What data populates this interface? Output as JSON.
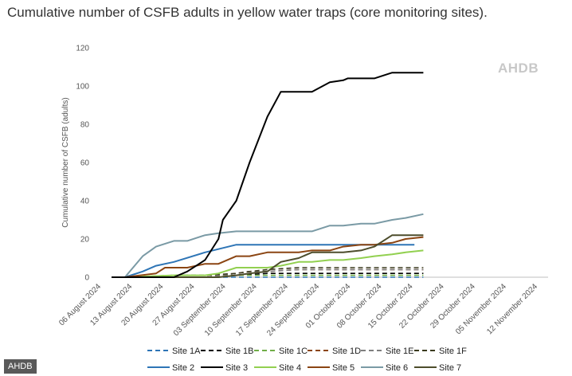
{
  "page": {
    "title": "Cumulative number of CSFB adults in yellow water traps (core monitoring sites).",
    "watermark": "AHDB",
    "footer_badge": "AHDB"
  },
  "chart_data": {
    "type": "line",
    "title": "Cumulative number of CSFB adults in yellow water traps (core monitoring sites).",
    "xlabel": "",
    "ylabel": "Cumulative number of CSFB (adults)",
    "ylim": [
      0,
      120
    ],
    "yticks": [
      0,
      20,
      40,
      60,
      80,
      100,
      120
    ],
    "xlim": [
      0,
      98
    ],
    "x_unit": "days since 06 August 2024",
    "xtick_days": [
      0,
      7,
      14,
      21,
      28,
      35,
      42,
      49,
      56,
      63,
      70,
      77,
      84,
      91,
      98
    ],
    "xtick_labels": [
      "06 August 2024",
      "13 August 2024",
      "20 August 2024",
      "27 August 2024",
      "03 September 2024",
      "10 September 2024",
      "17 September 2024",
      "24 September 2024",
      "01 October 2024",
      "08 October 2024",
      "15 October 2024",
      "22 October 2024",
      "29 October 2024",
      "05 November 2024",
      "12 November 2024"
    ],
    "grid": false,
    "legend_position": "bottom",
    "series": [
      {
        "name": "Site 1A",
        "color": "#2e75b6",
        "dash": "dashed",
        "x": [
          0,
          3,
          14,
          21,
          28,
          35,
          42,
          49,
          56,
          63,
          70
        ],
        "values": [
          0,
          0,
          0,
          0,
          0,
          0,
          0,
          0,
          0,
          0,
          0
        ]
      },
      {
        "name": "Site 1B",
        "color": "#000000",
        "dash": "dashed",
        "x": [
          0,
          3,
          14,
          21,
          28,
          35,
          42,
          49,
          56,
          63,
          70
        ],
        "values": [
          0,
          0,
          0,
          0,
          1,
          2,
          2,
          2,
          2,
          2,
          2
        ]
      },
      {
        "name": "Site 1C",
        "color": "#70ad47",
        "dash": "dashed",
        "x": [
          0,
          3,
          14,
          21,
          28,
          35,
          42,
          49,
          56,
          63,
          70
        ],
        "values": [
          0,
          0,
          0,
          0,
          1,
          1,
          1,
          1,
          1,
          1,
          1
        ]
      },
      {
        "name": "Site 1D",
        "color": "#8b4513",
        "dash": "dashed",
        "x": [
          0,
          3,
          14,
          21,
          28,
          31,
          35,
          42,
          49,
          56,
          63,
          70
        ],
        "values": [
          0,
          0,
          0,
          0,
          2,
          3,
          3,
          4,
          4,
          4,
          4,
          4
        ]
      },
      {
        "name": "Site 1E",
        "color": "#7f7f7f",
        "dash": "dashed",
        "x": [
          0,
          3,
          14,
          21,
          28,
          31,
          35,
          42,
          49,
          56,
          63,
          70
        ],
        "values": [
          0,
          0,
          0,
          0,
          2,
          3,
          3,
          4,
          4,
          4,
          4,
          4
        ]
      },
      {
        "name": "Site 1F",
        "color": "#3a3a1e",
        "dash": "dashed",
        "x": [
          0,
          3,
          14,
          21,
          28,
          31,
          35,
          42,
          49,
          56,
          63,
          70
        ],
        "values": [
          0,
          0,
          1,
          1,
          2,
          3,
          4,
          5,
          5,
          5,
          5,
          5
        ]
      },
      {
        "name": "Site 2",
        "color": "#2e75b6",
        "dash": "solid",
        "x": [
          0,
          3,
          7,
          10,
          14,
          21,
          28,
          35,
          42,
          49,
          56,
          63,
          68
        ],
        "values": [
          0,
          0,
          3,
          6,
          8,
          13,
          17,
          17,
          17,
          17,
          17,
          17,
          17
        ]
      },
      {
        "name": "Site 3",
        "color": "#000000",
        "dash": "solid",
        "x": [
          0,
          3,
          14,
          17,
          21,
          24,
          25,
          28,
          31,
          35,
          38,
          42,
          45,
          49,
          52,
          53,
          56,
          59,
          63,
          66,
          70
        ],
        "values": [
          0,
          0,
          0,
          3,
          9,
          20,
          30,
          40,
          60,
          84,
          97,
          97,
          97,
          102,
          103,
          104,
          104,
          104,
          107,
          107,
          107
        ]
      },
      {
        "name": "Site 4",
        "color": "#92d050",
        "dash": "solid",
        "x": [
          0,
          3,
          14,
          21,
          24,
          28,
          31,
          35,
          38,
          42,
          45,
          49,
          52,
          56,
          59,
          63,
          66,
          70
        ],
        "values": [
          0,
          0,
          1,
          1,
          2,
          5,
          5,
          5,
          6,
          8,
          8,
          9,
          9,
          10,
          11,
          12,
          13,
          14
        ]
      },
      {
        "name": "Site 5",
        "color": "#8b4513",
        "dash": "solid",
        "x": [
          0,
          3,
          10,
          12,
          14,
          17,
          21,
          24,
          28,
          31,
          35,
          38,
          42,
          45,
          49,
          52,
          56,
          59,
          63,
          66,
          70
        ],
        "values": [
          0,
          0,
          2,
          5,
          5,
          5,
          7,
          7,
          11,
          11,
          13,
          13,
          13,
          14,
          14,
          16,
          17,
          17,
          18,
          20,
          21
        ]
      },
      {
        "name": "Site 6",
        "color": "#7a9aa5",
        "dash": "solid",
        "x": [
          0,
          3,
          7,
          10,
          14,
          17,
          21,
          24,
          28,
          31,
          35,
          38,
          42,
          45,
          49,
          52,
          56,
          59,
          63,
          66,
          70
        ],
        "values": [
          0,
          0,
          11,
          16,
          19,
          19,
          22,
          23,
          24,
          24,
          24,
          24,
          24,
          24,
          27,
          27,
          28,
          28,
          30,
          31,
          33
        ]
      },
      {
        "name": "Site 7",
        "color": "#4d4d2c",
        "dash": "solid",
        "x": [
          0,
          3,
          14,
          21,
          24,
          28,
          31,
          35,
          38,
          42,
          45,
          49,
          52,
          56,
          59,
          63,
          66,
          70
        ],
        "values": [
          0,
          0,
          0,
          0,
          0,
          1,
          2,
          3,
          8,
          10,
          13,
          13,
          13,
          14,
          16,
          22,
          22,
          22
        ]
      }
    ]
  }
}
